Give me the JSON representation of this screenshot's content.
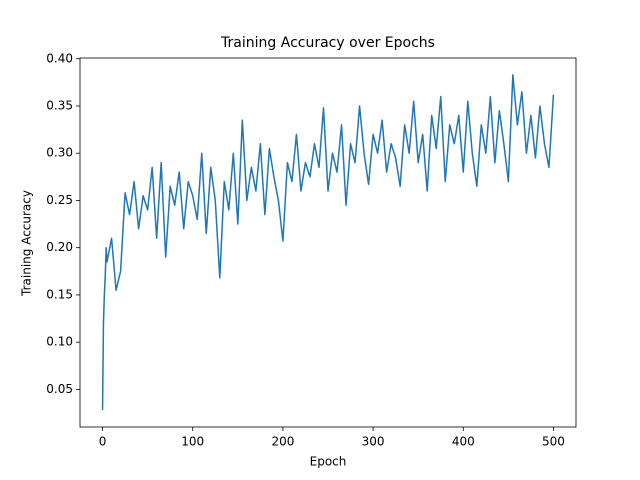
{
  "chart_data": {
    "type": "line",
    "title": "Training Accuracy over Epochs",
    "x_label": "Epoch",
    "y_label": "Training Accuracy",
    "color": "#1f77b4",
    "x": [
      0,
      1,
      2,
      3,
      4,
      5,
      10,
      15,
      20,
      25,
      30,
      35,
      40,
      45,
      50,
      55,
      60,
      65,
      70,
      75,
      80,
      85,
      90,
      95,
      100,
      105,
      110,
      115,
      120,
      125,
      130,
      135,
      140,
      145,
      150,
      155,
      160,
      165,
      170,
      175,
      180,
      185,
      190,
      195,
      200,
      205,
      210,
      215,
      220,
      225,
      230,
      235,
      240,
      245,
      250,
      255,
      260,
      265,
      270,
      275,
      280,
      285,
      290,
      295,
      300,
      305,
      310,
      315,
      320,
      325,
      330,
      335,
      340,
      345,
      350,
      355,
      360,
      365,
      370,
      375,
      380,
      385,
      390,
      395,
      400,
      405,
      410,
      415,
      420,
      425,
      430,
      435,
      440,
      445,
      450,
      455,
      460,
      465,
      470,
      475,
      480,
      485,
      490,
      495,
      500
    ],
    "values": [
      0.028,
      0.12,
      0.15,
      0.17,
      0.2,
      0.185,
      0.21,
      0.155,
      0.175,
      0.258,
      0.235,
      0.27,
      0.22,
      0.255,
      0.24,
      0.285,
      0.21,
      0.29,
      0.19,
      0.265,
      0.245,
      0.28,
      0.22,
      0.27,
      0.255,
      0.23,
      0.3,
      0.215,
      0.285,
      0.25,
      0.168,
      0.27,
      0.24,
      0.3,
      0.225,
      0.335,
      0.25,
      0.285,
      0.26,
      0.31,
      0.235,
      0.305,
      0.275,
      0.25,
      0.207,
      0.29,
      0.27,
      0.32,
      0.26,
      0.29,
      0.275,
      0.31,
      0.285,
      0.348,
      0.26,
      0.3,
      0.28,
      0.33,
      0.245,
      0.31,
      0.29,
      0.35,
      0.3,
      0.267,
      0.32,
      0.3,
      0.335,
      0.28,
      0.31,
      0.295,
      0.265,
      0.33,
      0.3,
      0.355,
      0.29,
      0.32,
      0.26,
      0.34,
      0.305,
      0.36,
      0.27,
      0.33,
      0.31,
      0.34,
      0.28,
      0.355,
      0.3,
      0.265,
      0.33,
      0.3,
      0.36,
      0.29,
      0.345,
      0.31,
      0.27,
      0.383,
      0.33,
      0.365,
      0.3,
      0.34,
      0.295,
      0.35,
      0.31,
      0.285,
      0.362
    ],
    "xlim": [
      -25,
      525
    ],
    "ylim": [
      0.0102,
      0.4008
    ],
    "xticks": [
      0,
      100,
      200,
      300,
      400,
      500
    ],
    "yticks": [
      {
        "value": 0.05,
        "label": "0.05"
      },
      {
        "value": 0.1,
        "label": "0.10"
      },
      {
        "value": 0.15,
        "label": "0.15"
      },
      {
        "value": 0.2,
        "label": "0.20"
      },
      {
        "value": 0.25,
        "label": "0.25"
      },
      {
        "value": 0.3,
        "label": "0.30"
      },
      {
        "value": 0.35,
        "label": "0.35"
      },
      {
        "value": 0.4,
        "label": "0.40"
      }
    ]
  }
}
